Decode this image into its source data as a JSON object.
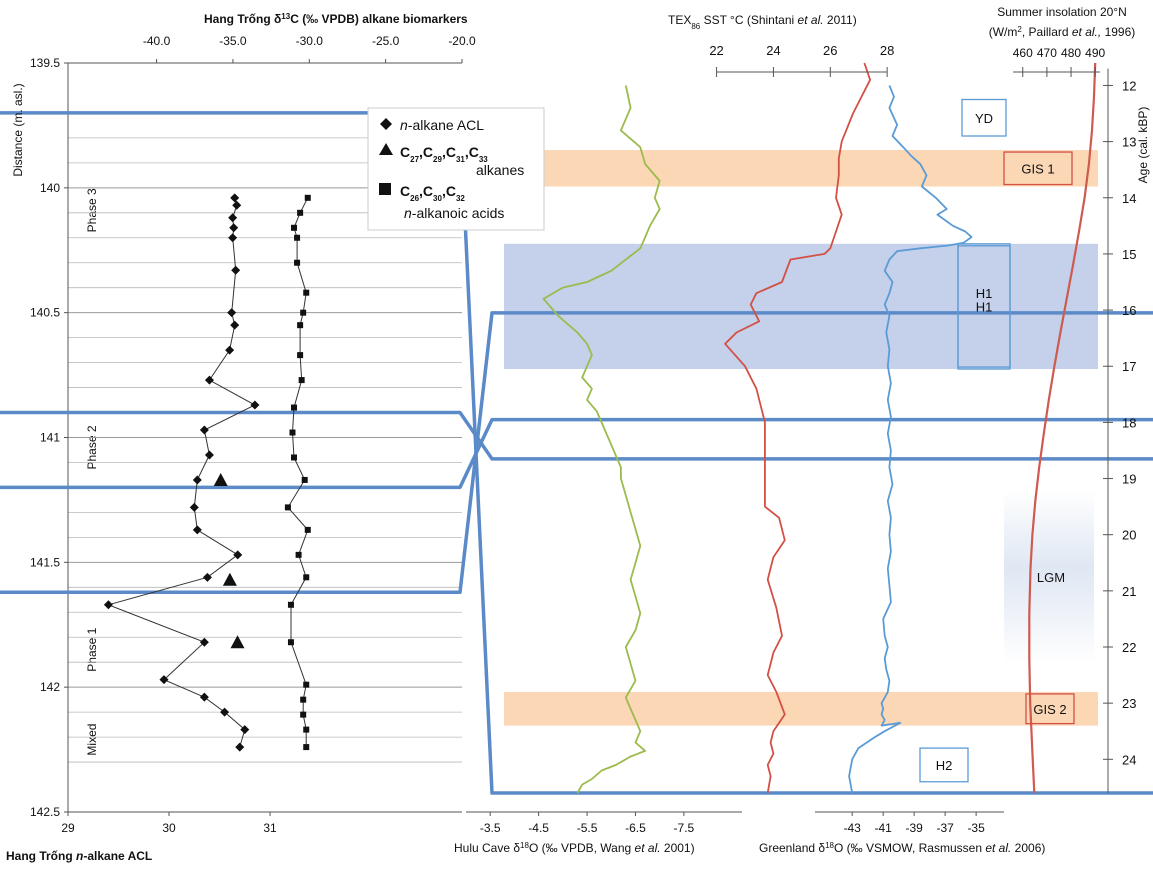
{
  "chart_data": {
    "type": "line",
    "title": "",
    "core_axis": {
      "ylabel": "Distance (m. asl.)",
      "ylim": [
        139.5,
        142.5
      ],
      "ticks": [
        "142.5",
        "142",
        "141.5",
        "141",
        "140.5",
        "140",
        "139.5"
      ],
      "tick_values": [
        142.5,
        142.0,
        141.5,
        141.0,
        140.5,
        140.0,
        139.5
      ]
    },
    "acl_axis": {
      "xlabel": "Hang Trống n-alkane ACL",
      "label_parts": [
        "Hang Trống ",
        "n",
        "-alkane ACL"
      ],
      "xlim": [
        29,
        32.9
      ],
      "ticks": [
        "29",
        "30",
        "31"
      ],
      "tick_values": [
        29,
        30,
        31
      ]
    },
    "d13c_axis": {
      "label_parts": [
        "Hang Trống  δ",
        "13",
        "C (‰ VPDB) alkane biomarkers"
      ],
      "xlim": [
        -45.8,
        -20.0
      ],
      "ticks": [
        "-40.0",
        "-35.0",
        "-30.0",
        "-25.0",
        "-20.0"
      ],
      "tick_values": [
        -40.0,
        -35.0,
        -30.0,
        -25.0,
        -20.0
      ]
    },
    "age_axis": {
      "label": "Age (cal. kBP)",
      "ylim": [
        11.6,
        24.6
      ],
      "ticks": [
        "12",
        "13",
        "14",
        "15",
        "16",
        "17",
        "18",
        "19",
        "20",
        "21",
        "22",
        "23",
        "24"
      ],
      "tick_values": [
        12,
        13,
        14,
        15,
        16,
        17,
        18,
        19,
        20,
        21,
        22,
        23,
        24
      ]
    },
    "hulu_axis": {
      "label_parts": [
        "Hulu Cave δ",
        "18",
        "O (‰ VPDB, Wang ",
        "et al.",
        " 2001)"
      ],
      "xlim": [
        -3.0,
        -8.7
      ],
      "ticks": [
        "-3.5",
        "-4.5",
        "-5.5",
        "-6.5",
        "-7.5"
      ],
      "tick_values": [
        -3.5,
        -4.5,
        -5.5,
        -6.5,
        -7.5
      ]
    },
    "greenland_axis": {
      "label_parts": [
        "Greenland δ",
        "18",
        "O (‰ VSMOW, Rasmussen ",
        "et al.",
        " 2006)"
      ],
      "xlim": [
        -45.4,
        -33.2
      ],
      "ticks": [
        "-43",
        "-41",
        "-39",
        "-37",
        "-35"
      ],
      "tick_values": [
        -43,
        -41,
        -39,
        -37,
        -35
      ]
    },
    "tex_axis": {
      "label_parts": [
        "TEX",
        "86",
        " SST °C (Shintani ",
        "et al.",
        " 2011)"
      ],
      "xlim": [
        17.9,
        28.1
      ],
      "ticks": [
        "22",
        "24",
        "26",
        "28"
      ],
      "tick_values": [
        22,
        24,
        26,
        28
      ]
    },
    "insolation_axis": {
      "label_parts": [
        "Summer insolation 20°N",
        "(W/m",
        "2",
        ", Paillard ",
        "et al.,",
        " 1996)"
      ],
      "xlim": [
        434,
        492
      ],
      "ticks": [
        "460",
        "470",
        "480",
        "490"
      ],
      "tick_values": [
        460,
        470,
        480,
        490
      ]
    },
    "phases": [
      {
        "label": "Mixed",
        "from": 142.3,
        "to": 142.12,
        "shade": "light"
      },
      {
        "label": "Phase 1",
        "from": 142.12,
        "to": 141.58,
        "shade": "dark"
      },
      {
        "label": "Phase 2",
        "from": 141.58,
        "to": 140.5,
        "shade": "light"
      },
      {
        "label": "Phase 3",
        "from": 140.5,
        "to": 139.68,
        "shade": "dark"
      }
    ],
    "boundaries": [
      {
        "core": 141.62,
        "age": 16.05
      },
      {
        "core": 141.2,
        "age": 17.95
      },
      {
        "core": 140.9,
        "age": 18.65
      },
      {
        "core": 139.7,
        "age": 24.6
      }
    ],
    "legend": {
      "entries": [
        {
          "marker": "diamond",
          "parts": [
            "n",
            "-alkane ACL"
          ]
        },
        {
          "marker": "triangle",
          "parts": [
            "C",
            "27",
            ",C",
            "29",
            ",C",
            "31",
            ",C",
            "33"
          ],
          "line2": "alkanes"
        },
        {
          "marker": "square",
          "parts": [
            "C",
            "26",
            ",C",
            "30",
            ",C",
            "32"
          ],
          "line2_parts": [
            "n",
            "-alkanoic acids"
          ]
        }
      ]
    },
    "series": [
      {
        "name": "n-alkane ACL",
        "axis": "acl",
        "marker": "diamond",
        "x": [
          30.7,
          30.75,
          30.55,
          30.35,
          29.95,
          30.35,
          29.4,
          30.38,
          30.68,
          30.28,
          30.25,
          30.28,
          30.4,
          30.35,
          30.85,
          30.4,
          30.6,
          30.65,
          30.62,
          30.66,
          30.63,
          30.64,
          30.63,
          30.67,
          30.65
        ],
        "y": [
          142.24,
          142.17,
          142.1,
          142.04,
          141.97,
          141.82,
          141.67,
          141.56,
          141.47,
          141.37,
          141.28,
          141.17,
          141.07,
          140.97,
          140.87,
          140.77,
          140.65,
          140.55,
          140.5,
          140.33,
          140.2,
          140.16,
          140.12,
          140.07,
          140.04
        ]
      },
      {
        "name": "n-alkanoic acids",
        "axis": "d13c",
        "marker": "square",
        "x": [
          -30.2,
          -30.2,
          -30.4,
          -30.4,
          -30.2,
          -31.2,
          -31.2,
          -30.2,
          -30.7,
          -30.1,
          -31.4,
          -30.3,
          -31,
          -31.1,
          -31,
          -30.5,
          -30.6,
          -30.6,
          -30.4,
          -30.2,
          -30.8,
          -30.8,
          -31,
          -30.6,
          -30.1
        ],
        "y": [
          142.24,
          142.17,
          142.11,
          142.05,
          141.99,
          141.82,
          141.67,
          141.56,
          141.47,
          141.37,
          141.28,
          141.17,
          141.08,
          140.98,
          140.88,
          140.77,
          140.67,
          140.55,
          140.5,
          140.42,
          140.3,
          140.2,
          140.16,
          140.1,
          140.04
        ]
      },
      {
        "name": "alkanes",
        "axis": "d13c",
        "marker": "triangle",
        "x": [
          -34.7,
          -35.2,
          -35.8
        ],
        "y": [
          141.82,
          141.57,
          141.17
        ]
      },
      {
        "name": "Hulu Cave",
        "axis": "hulu",
        "color": "#9bbb4c",
        "x": [
          -6.3,
          -6.4,
          -6.2,
          -6.6,
          -6.7,
          -7.0,
          -6.9,
          -7.0,
          -6.8,
          -6.7,
          -6.6,
          -6.3,
          -6.0,
          -5.5,
          -5.0,
          -4.6,
          -4.9,
          -5.3,
          -5.5,
          -5.6,
          -5.5,
          -5.4,
          -5.6,
          -5.5,
          -5.7,
          -5.8,
          -5.9,
          -6.0,
          -6.1,
          -6.2,
          -6.2,
          -6.3,
          -6.4,
          -6.5,
          -6.6,
          -6.5,
          -6.4,
          -6.5,
          -6.6,
          -6.5,
          -6.3,
          -6.4,
          -6.5,
          -6.3,
          -6.4,
          -6.5,
          -6.6,
          -6.5,
          -6.7,
          -6.4,
          -6.1,
          -5.8,
          -5.6,
          -5.4,
          -5.3
        ],
        "y": [
          12.0,
          12.4,
          12.8,
          13.1,
          13.4,
          13.7,
          14.0,
          14.2,
          14.5,
          14.7,
          14.9,
          15.1,
          15.3,
          15.5,
          15.6,
          15.8,
          16.1,
          16.4,
          16.6,
          16.8,
          17.0,
          17.2,
          17.4,
          17.6,
          17.8,
          18.0,
          18.2,
          18.4,
          18.6,
          18.8,
          19.0,
          19.3,
          19.6,
          19.9,
          20.2,
          20.5,
          20.8,
          21.1,
          21.4,
          21.7,
          22.0,
          22.3,
          22.6,
          22.9,
          23.1,
          23.3,
          23.5,
          23.7,
          23.85,
          23.95,
          24.1,
          24.2,
          24.35,
          24.45,
          24.6
        ]
      },
      {
        "name": "TEX86 SST",
        "axis": "tex",
        "color": "#d35045",
        "x": [
          27.2,
          27.4,
          26.8,
          26.4,
          26.3,
          26.3,
          26.2,
          26.4,
          26.2,
          26.0,
          25.8,
          24.6,
          24.3,
          23.4,
          23.2,
          23.5,
          22.7,
          22.3,
          23.0,
          23.4,
          23.6,
          23.7,
          23.7,
          23.7,
          23.7,
          24.2,
          24.4,
          24.0,
          23.8,
          24.1,
          24.3,
          24.0,
          23.8,
          24.1,
          24.4,
          24.0,
          23.9,
          24.0,
          23.8,
          23.9,
          23.8
        ],
        "y": [
          11.6,
          11.9,
          12.5,
          13.0,
          13.3,
          13.6,
          14.0,
          14.3,
          14.6,
          14.9,
          15.0,
          15.1,
          15.5,
          15.7,
          15.9,
          16.2,
          16.4,
          16.6,
          17.0,
          17.4,
          17.8,
          18.0,
          18.5,
          19.0,
          19.5,
          19.7,
          20.1,
          20.4,
          20.8,
          21.3,
          21.8,
          22.1,
          22.5,
          22.8,
          23.2,
          23.5,
          23.7,
          23.9,
          24.1,
          24.3,
          24.6
        ]
      },
      {
        "name": "Greenland",
        "axis": "greenland",
        "color": "#5b9bd5",
        "x": [
          -40.6,
          -40.3,
          -40.6,
          -40.1,
          -40.4,
          -39.7,
          -39.2,
          -38.6,
          -38.2,
          -38.5,
          -37.6,
          -36.9,
          -37.5,
          -36.5,
          -35.7,
          -35.3,
          -35.8,
          -36.8,
          -38.6,
          -40.1,
          -40.6,
          -40.9,
          -40.4,
          -40.6,
          -40.9,
          -40.6,
          -40.8,
          -40.6,
          -40.7,
          -40.5,
          -40.7,
          -40.5,
          -40.7,
          -40.5,
          -40.6,
          -40.4,
          -40.7,
          -40.5,
          -40.6,
          -40.5,
          -40.7,
          -40.6,
          -40.5,
          -41.0,
          -40.9,
          -40.7,
          -40.9,
          -40.8,
          -40.6,
          -40.7,
          -41.1,
          -41.0,
          -41.1,
          -40.9,
          -41.1,
          -39.9,
          -40.9,
          -41.5,
          -42.6,
          -43.0,
          -43.2,
          -43.0
        ],
        "y": [
          12.0,
          12.2,
          12.4,
          12.7,
          12.9,
          13.1,
          13.25,
          13.4,
          13.6,
          13.8,
          14.0,
          14.2,
          14.3,
          14.5,
          14.6,
          14.7,
          14.8,
          14.85,
          14.9,
          14.95,
          15.1,
          15.3,
          15.5,
          15.7,
          15.9,
          16.1,
          16.4,
          16.7,
          17.0,
          17.3,
          17.6,
          17.9,
          18.2,
          18.5,
          18.8,
          19.1,
          19.4,
          19.7,
          20.0,
          20.3,
          20.6,
          20.9,
          21.2,
          21.5,
          21.8,
          22.0,
          22.2,
          22.4,
          22.6,
          22.8,
          23.0,
          23.1,
          23.2,
          23.3,
          23.4,
          23.35,
          23.5,
          23.6,
          23.8,
          24.0,
          24.3,
          24.6
        ]
      },
      {
        "name": "Summer insolation",
        "axis": "insolation",
        "color": "#cf5a4f",
        "x": [
          490,
          489.5,
          488.7,
          487.4,
          485.6,
          483.3,
          480.8,
          478.2,
          475.6,
          473.1,
          470.8,
          468.7,
          466.8,
          465.2,
          464.0,
          463.2,
          462.7,
          462.7,
          463.1,
          463.9,
          464.8
        ],
        "y": [
          11.6,
          12.2,
          12.8,
          13.4,
          14.0,
          14.6,
          15.2,
          15.8,
          16.4,
          17.0,
          17.6,
          18.2,
          18.8,
          19.4,
          20.0,
          20.6,
          21.4,
          22.2,
          23.0,
          23.8,
          24.6
        ]
      }
    ],
    "events": [
      {
        "label": "YD",
        "type": "box",
        "age_from": 12.25,
        "age_to": 12.9,
        "border": "#5b9bd5"
      },
      {
        "label": "GIS 1",
        "type": "band",
        "age_from": 13.15,
        "age_to": 13.8,
        "fill": "#fbd7b5",
        "border": "#d35045"
      },
      {
        "label": "H1",
        "type": "band",
        "age_from": 14.82,
        "age_to": 17.05,
        "fill": "#c5d0ea",
        "border": "#5b9bd5"
      },
      {
        "label": "LGM",
        "type": "gradient",
        "age_from": 19.2,
        "age_to": 22.3
      },
      {
        "label": "GIS 2",
        "type": "band",
        "age_from": 22.8,
        "age_to": 23.4,
        "fill": "#fbd7b5",
        "border": "#d35045"
      },
      {
        "label": "H2",
        "type": "box",
        "age_from": 23.8,
        "age_to": 24.4,
        "border": "#5b9bd5"
      }
    ]
  }
}
